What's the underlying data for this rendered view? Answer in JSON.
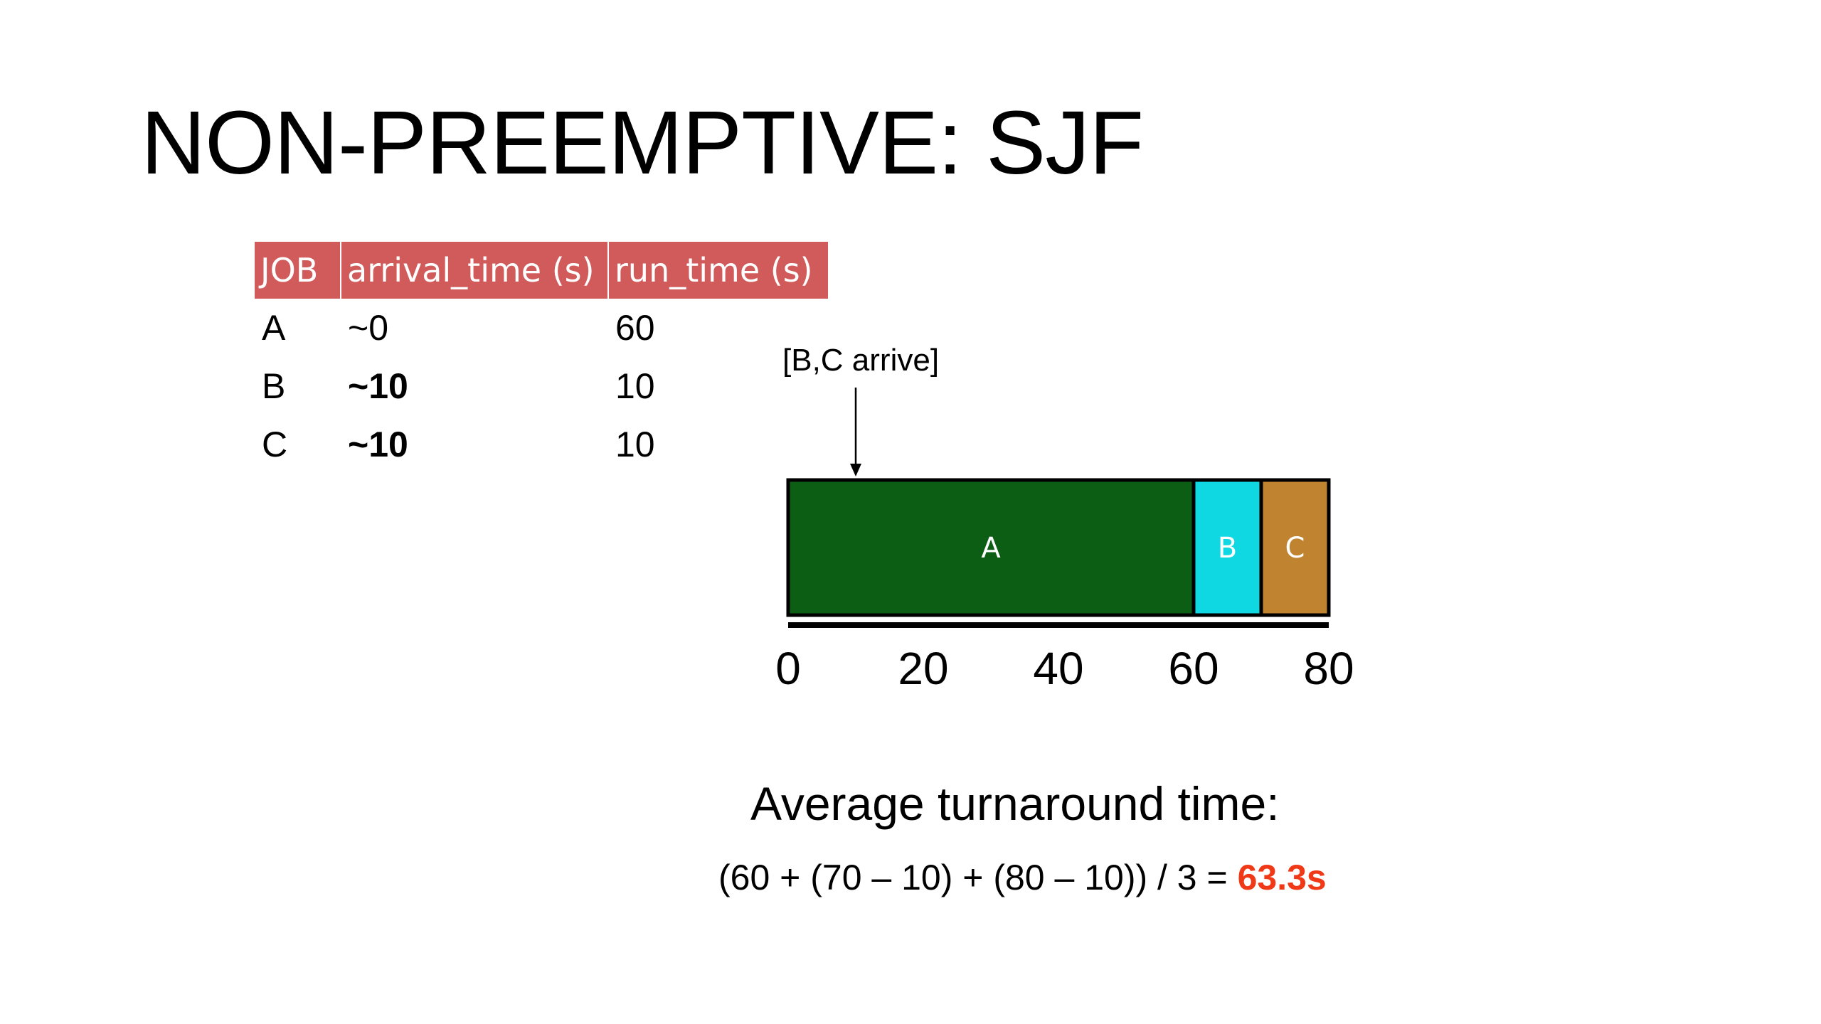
{
  "title": "NON-PREEMPTIVE: SJF",
  "table": {
    "headers": [
      "JOB",
      "arrival_time (s)",
      "run_time (s)"
    ],
    "rows": [
      {
        "job": "A",
        "arrival": "~0",
        "run": "60"
      },
      {
        "job": "B",
        "arrival": "~10",
        "run": "10"
      },
      {
        "job": "C",
        "arrival": "~10",
        "run": "10"
      }
    ]
  },
  "timeline": {
    "arrive_label": "[B,C arrive]",
    "arrive_time": 10,
    "axis_min": 0,
    "axis_max": 80,
    "ticks": [
      "0",
      "20",
      "40",
      "60",
      "80"
    ],
    "segments": [
      {
        "label": "A",
        "start": 0,
        "end": 60,
        "color": "#0d5e15"
      },
      {
        "label": "B",
        "start": 60,
        "end": 70,
        "color": "#10d8e2"
      },
      {
        "label": "C",
        "start": 70,
        "end": 80,
        "color": "#c08430"
      }
    ]
  },
  "summary": {
    "heading": "Average turnaround time:",
    "formula": "(60 + (70 – 10) + (80 – 10)) / 3 = ",
    "result": "63.3s"
  }
}
